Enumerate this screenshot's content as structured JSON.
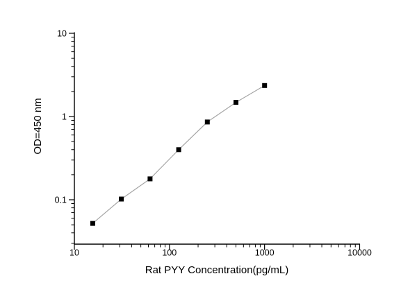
{
  "figure": {
    "background": "#ffffff",
    "description": "ELISA standard curve, log-log scatter with connecting line"
  },
  "chart_data": {
    "type": "line",
    "title": "",
    "xlabel": "Rat PYY Concentration(pg/mL)",
    "ylabel": "OD=450 nm",
    "x_scale": "log",
    "y_scale": "log",
    "xlim": [
      10,
      10000
    ],
    "ylim": [
      0.029,
      10
    ],
    "grid": false,
    "legend": false,
    "marker": "square",
    "x": [
      15.6,
      31.2,
      62.5,
      125,
      250,
      500,
      1000
    ],
    "y": [
      0.052,
      0.102,
      0.178,
      0.4,
      0.86,
      1.48,
      2.36
    ],
    "x_ticks": [
      {
        "value": 10,
        "label": "10"
      },
      {
        "value": 100,
        "label": "100"
      },
      {
        "value": 1000,
        "label": "1000"
      },
      {
        "value": 10000,
        "label": "10000"
      }
    ],
    "y_ticks": [
      {
        "value": 10,
        "label": "10"
      },
      {
        "value": 1,
        "label": "1"
      },
      {
        "value": 0.1,
        "label": "0.1"
      }
    ],
    "colors": {
      "marker": "#000000",
      "line": "#a6a6a6",
      "axis": "#000000",
      "text": "#000000"
    }
  }
}
